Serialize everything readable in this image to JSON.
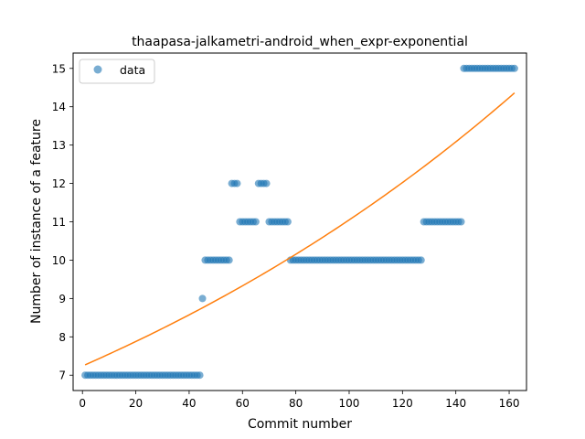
{
  "chart_data": {
    "type": "scatter",
    "title": "thaapasa-jalkametri-android_when_expr-exponential",
    "xlabel": "Commit number",
    "ylabel": "Number of instance of a feature",
    "xlim": [
      -3.5,
      166.5
    ],
    "ylim": [
      6.6,
      15.4
    ],
    "x_ticks": [
      0,
      20,
      40,
      60,
      80,
      100,
      120,
      140,
      160
    ],
    "y_ticks": [
      7,
      8,
      9,
      10,
      11,
      12,
      13,
      14,
      15
    ],
    "grid": false,
    "legend": {
      "position": "top-left",
      "entries": [
        "data"
      ]
    },
    "colors": {
      "data": "#1f77b4",
      "fit": "#ff7f0e"
    },
    "series": [
      {
        "name": "data",
        "kind": "scatter",
        "segments": [
          {
            "x_from": 1,
            "x_to": 44,
            "y": 7
          },
          {
            "x_from": 45,
            "x_to": 45,
            "y": 9
          },
          {
            "x_from": 46,
            "x_to": 55,
            "y": 10
          },
          {
            "x_from": 56,
            "x_to": 58,
            "y": 12
          },
          {
            "x_from": 59,
            "x_to": 65,
            "y": 11
          },
          {
            "x_from": 66,
            "x_to": 69,
            "y": 12
          },
          {
            "x_from": 70,
            "x_to": 77,
            "y": 11
          },
          {
            "x_from": 78,
            "x_to": 127,
            "y": 10
          },
          {
            "x_from": 128,
            "x_to": 142,
            "y": 11
          },
          {
            "x_from": 143,
            "x_to": 162,
            "y": 15
          }
        ]
      },
      {
        "kind": "line",
        "x_start": 1,
        "x_end": 162,
        "y_start": 7.27,
        "y_end": 14.36
      }
    ]
  }
}
